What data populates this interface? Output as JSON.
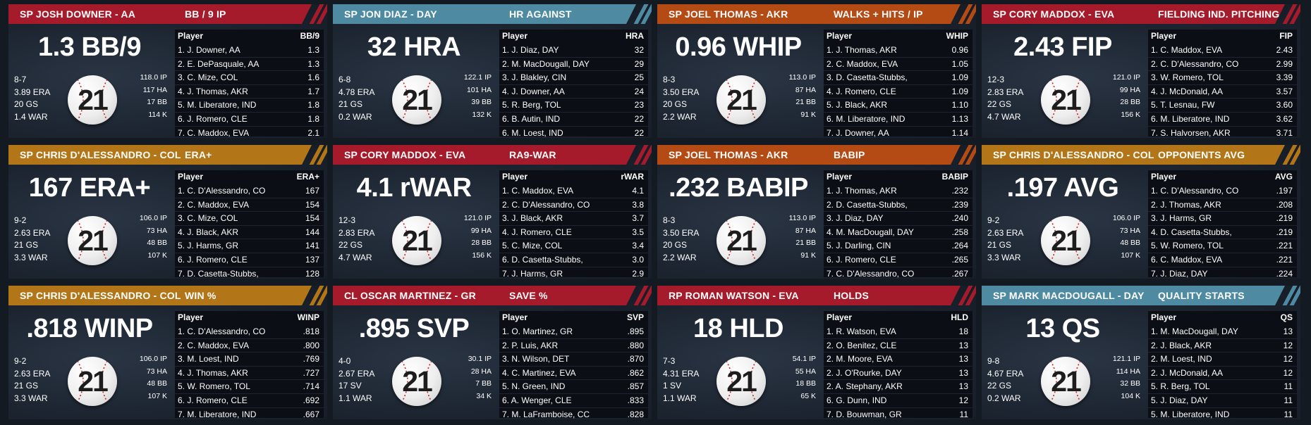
{
  "colors": {
    "red": "#a61b2b",
    "blue": "#4f8aa3",
    "orange": "#b44a14",
    "gold": "#b27618"
  },
  "cards": [
    {
      "color": "#a61b2b",
      "player": "SP JOSH DOWNER - AA",
      "category": "BB / 9 IP",
      "big": "1.3 BB/9",
      "left_stats": [
        "8-7",
        "3.89 ERA",
        "20 GS",
        "1.4 WAR"
      ],
      "right_stats": [
        "118.0 IP",
        "117 HA",
        "17 BB",
        "114 K"
      ],
      "col_player": "Player",
      "col_stat": "BB/9",
      "rows": [
        {
          "name": "1. J. Downer, AA",
          "val": "1.3"
        },
        {
          "name": "2. E. DePasquale, AA",
          "val": "1.3"
        },
        {
          "name": "3. C. Mize, COL",
          "val": "1.6"
        },
        {
          "name": "4. J. Thomas, AKR",
          "val": "1.7"
        },
        {
          "name": "5. M. Liberatore, IND",
          "val": "1.8"
        },
        {
          "name": "6. J. Romero, CLE",
          "val": "1.8"
        },
        {
          "name": "7. C. Maddox, EVA",
          "val": "2.1"
        }
      ]
    },
    {
      "color": "#4f8aa3",
      "player": "SP JON DIAZ - DAY",
      "category": "HR AGAINST",
      "big": "32 HRA",
      "left_stats": [
        "6-8",
        "4.78 ERA",
        "21 GS",
        "0.2 WAR"
      ],
      "right_stats": [
        "122.1 IP",
        "101 HA",
        "39 BB",
        "132 K"
      ],
      "col_player": "Player",
      "col_stat": "HRA",
      "rows": [
        {
          "name": "1. J. Diaz, DAY",
          "val": "32"
        },
        {
          "name": "2. M. MacDougall, DAY",
          "val": "29"
        },
        {
          "name": "3. J. Blakley, CIN",
          "val": "25"
        },
        {
          "name": "4. J. Downer, AA",
          "val": "24"
        },
        {
          "name": "5. R. Berg, TOL",
          "val": "23"
        },
        {
          "name": "6. B. Autin, IND",
          "val": "22"
        },
        {
          "name": "6. M. Loest, IND",
          "val": "22"
        }
      ]
    },
    {
      "color": "#b44a14",
      "player": "SP JOEL THOMAS - AKR",
      "category": "WALKS + HITS / IP",
      "big": "0.96 WHIP",
      "left_stats": [
        "8-3",
        "3.50 ERA",
        "20 GS",
        "2.2 WAR"
      ],
      "right_stats": [
        "113.0 IP",
        "87 HA",
        "21 BB",
        "91 K"
      ],
      "col_player": "Player",
      "col_stat": "WHIP",
      "rows": [
        {
          "name": "1. J. Thomas, AKR",
          "val": "0.96"
        },
        {
          "name": "2. C. Maddox, EVA",
          "val": "1.05"
        },
        {
          "name": "3. D. Casetta-Stubbs,",
          "val": "1.09"
        },
        {
          "name": "4. J. Romero, CLE",
          "val": "1.09"
        },
        {
          "name": "5. J. Black, AKR",
          "val": "1.10"
        },
        {
          "name": "6. M. Liberatore, IND",
          "val": "1.13"
        },
        {
          "name": "7. J. Downer, AA",
          "val": "1.14"
        }
      ]
    },
    {
      "color": "#a61b2b",
      "player": "SP CORY MADDOX - EVA",
      "category": "FIELDING IND. PITCHING",
      "big": "2.43 FIP",
      "left_stats": [
        "12-3",
        "2.83 ERA",
        "22 GS",
        "4.7 WAR"
      ],
      "right_stats": [
        "121.0 IP",
        "99 HA",
        "28 BB",
        "156 K"
      ],
      "col_player": "Player",
      "col_stat": "FIP",
      "rows": [
        {
          "name": "1. C. Maddox, EVA",
          "val": "2.43"
        },
        {
          "name": "2. C. D'Alessandro, CO",
          "val": "2.99"
        },
        {
          "name": "3. W. Romero, TOL",
          "val": "3.39"
        },
        {
          "name": "4. J. McDonald, AA",
          "val": "3.57"
        },
        {
          "name": "5. T. Lesnau, FW",
          "val": "3.60"
        },
        {
          "name": "6. M. Liberatore, IND",
          "val": "3.62"
        },
        {
          "name": "7. S. Halvorsen, AKR",
          "val": "3.71"
        }
      ]
    },
    {
      "color": "#b27618",
      "player": "SP CHRIS D'ALESSANDRO - COL",
      "category": "ERA+",
      "big": "167 ERA+",
      "left_stats": [
        "9-2",
        "2.63 ERA",
        "21 GS",
        "3.3 WAR"
      ],
      "right_stats": [
        "106.0 IP",
        "73 HA",
        "48 BB",
        "107 K"
      ],
      "col_player": "Player",
      "col_stat": "ERA+",
      "rows": [
        {
          "name": "1. C. D'Alessandro, CO",
          "val": "167"
        },
        {
          "name": "2. C. Maddox, EVA",
          "val": "154"
        },
        {
          "name": "3. C. Mize, COL",
          "val": "154"
        },
        {
          "name": "4. J. Black, AKR",
          "val": "144"
        },
        {
          "name": "5. J. Harms, GR",
          "val": "141"
        },
        {
          "name": "6. J. Romero, CLE",
          "val": "137"
        },
        {
          "name": "7. D. Casetta-Stubbs,",
          "val": "128"
        }
      ]
    },
    {
      "color": "#a61b2b",
      "player": "SP CORY MADDOX - EVA",
      "category": "RA9-WAR",
      "big": "4.1 rWAR",
      "left_stats": [
        "12-3",
        "2.83 ERA",
        "22 GS",
        "4.7 WAR"
      ],
      "right_stats": [
        "121.0 IP",
        "99 HA",
        "28 BB",
        "156 K"
      ],
      "col_player": "Player",
      "col_stat": "rWAR",
      "rows": [
        {
          "name": "1. C. Maddox, EVA",
          "val": "4.1"
        },
        {
          "name": "2. C. D'Alessandro, CO",
          "val": "3.8"
        },
        {
          "name": "3. J. Black, AKR",
          "val": "3.7"
        },
        {
          "name": "4. J. Romero, CLE",
          "val": "3.5"
        },
        {
          "name": "5. C. Mize, COL",
          "val": "3.4"
        },
        {
          "name": "6. D. Casetta-Stubbs,",
          "val": "3.0"
        },
        {
          "name": "7. J. Harms, GR",
          "val": "2.9"
        }
      ]
    },
    {
      "color": "#b44a14",
      "player": "SP JOEL THOMAS - AKR",
      "category": "BABIP",
      "big": ".232 BABIP",
      "left_stats": [
        "8-3",
        "3.50 ERA",
        "20 GS",
        "2.2 WAR"
      ],
      "right_stats": [
        "113.0 IP",
        "87 HA",
        "21 BB",
        "91 K"
      ],
      "col_player": "Player",
      "col_stat": "BABIP",
      "rows": [
        {
          "name": "1. J. Thomas, AKR",
          "val": ".232"
        },
        {
          "name": "2. D. Casetta-Stubbs,",
          "val": ".239"
        },
        {
          "name": "3. J. Diaz, DAY",
          "val": ".240"
        },
        {
          "name": "4. M. MacDougall, DAY",
          "val": ".258"
        },
        {
          "name": "5. J. Darling, CIN",
          "val": ".264"
        },
        {
          "name": "6. J. Romero, CLE",
          "val": ".265"
        },
        {
          "name": "7. C. D'Alessandro, CO",
          "val": ".267"
        }
      ]
    },
    {
      "color": "#b27618",
      "player": "SP CHRIS D'ALESSANDRO - COL",
      "category": "OPPONENTS AVG",
      "big": ".197 AVG",
      "left_stats": [
        "9-2",
        "2.63 ERA",
        "21 GS",
        "3.3 WAR"
      ],
      "right_stats": [
        "106.0 IP",
        "73 HA",
        "48 BB",
        "107 K"
      ],
      "col_player": "Player",
      "col_stat": "AVG",
      "rows": [
        {
          "name": "1. C. D'Alessandro, CO",
          "val": ".197"
        },
        {
          "name": "2. J. Thomas, AKR",
          "val": ".208"
        },
        {
          "name": "3. J. Harms, GR",
          "val": ".219"
        },
        {
          "name": "4. D. Casetta-Stubbs,",
          "val": ".219"
        },
        {
          "name": "5. W. Romero, TOL",
          "val": ".221"
        },
        {
          "name": "6. C. Maddox, EVA",
          "val": ".221"
        },
        {
          "name": "7. J. Diaz, DAY",
          "val": ".224"
        }
      ]
    },
    {
      "color": "#b27618",
      "player": "SP CHRIS D'ALESSANDRO - COL",
      "category": "WIN %",
      "big": ".818 WINP",
      "left_stats": [
        "9-2",
        "2.63 ERA",
        "21 GS",
        "3.3 WAR"
      ],
      "right_stats": [
        "106.0 IP",
        "73 HA",
        "48 BB",
        "107 K"
      ],
      "col_player": "Player",
      "col_stat": "WINP",
      "rows": [
        {
          "name": "1. C. D'Alessandro, CO",
          "val": ".818"
        },
        {
          "name": "2. C. Maddox, EVA",
          "val": ".800"
        },
        {
          "name": "3. M. Loest, IND",
          "val": ".769"
        },
        {
          "name": "4. J. Thomas, AKR",
          "val": ".727"
        },
        {
          "name": "5. W. Romero, TOL",
          "val": ".714"
        },
        {
          "name": "6. J. Romero, CLE",
          "val": ".692"
        },
        {
          "name": "7. M. Liberatore, IND",
          "val": ".667"
        }
      ]
    },
    {
      "color": "#a61b2b",
      "player": "CL OSCAR MARTINEZ - GR",
      "category": "SAVE %",
      "big": ".895 SVP",
      "left_stats": [
        "4-0",
        "2.67 ERA",
        "17 SV",
        "1.1 WAR"
      ],
      "right_stats": [
        "30.1 IP",
        "28 HA",
        "7 BB",
        "34 K"
      ],
      "col_player": "Player",
      "col_stat": "SVP",
      "rows": [
        {
          "name": "1. O. Martinez, GR",
          "val": ".895"
        },
        {
          "name": "2. P. Luis, AKR",
          "val": ".880"
        },
        {
          "name": "3. N. Wilson, DET",
          "val": ".870"
        },
        {
          "name": "4. C. Martinez, EVA",
          "val": ".862"
        },
        {
          "name": "5. N. Green, IND",
          "val": ".857"
        },
        {
          "name": "6. A. Wenger, CLE",
          "val": ".833"
        },
        {
          "name": "7. M. LaFramboise, CC",
          "val": ".828"
        }
      ]
    },
    {
      "color": "#a61b2b",
      "player": "RP ROMAN WATSON - EVA",
      "category": "HOLDS",
      "big": "18 HLD",
      "left_stats": [
        "7-3",
        "4.31 ERA",
        "1 SV",
        "1.1 WAR"
      ],
      "right_stats": [
        "54.1 IP",
        "55 HA",
        "18 BB",
        "65 K"
      ],
      "col_player": "Player",
      "col_stat": "HLD",
      "rows": [
        {
          "name": "1. R. Watson, EVA",
          "val": "18"
        },
        {
          "name": "2. O. Benitez, CLE",
          "val": "13"
        },
        {
          "name": "2. M. Moore, EVA",
          "val": "13"
        },
        {
          "name": "2. J. O'Rourke, DAY",
          "val": "13"
        },
        {
          "name": "2. A. Stephany, AKR",
          "val": "13"
        },
        {
          "name": "6. G. Dunn, IND",
          "val": "12"
        },
        {
          "name": "7. D. Bouwman, GR",
          "val": "11"
        }
      ]
    },
    {
      "color": "#4f8aa3",
      "player": "SP MARK MACDOUGALL - DAY",
      "category": "QUALITY STARTS",
      "big": "13 QS",
      "left_stats": [
        "9-8",
        "4.67 ERA",
        "22 GS",
        "0.2 WAR"
      ],
      "right_stats": [
        "121.1 IP",
        "114 HA",
        "32 BB",
        "104 K"
      ],
      "col_player": "Player",
      "col_stat": "QS",
      "rows": [
        {
          "name": "1. M. MacDougall, DAY",
          "val": "13"
        },
        {
          "name": "2. J. Black, AKR",
          "val": "12"
        },
        {
          "name": "2. M. Loest, IND",
          "val": "12"
        },
        {
          "name": "2. J. McDonald, AA",
          "val": "12"
        },
        {
          "name": "5. R. Berg, TOL",
          "val": "11"
        },
        {
          "name": "5. J. Diaz, DAY",
          "val": "11"
        },
        {
          "name": "5. M. Liberatore, IND",
          "val": "11"
        }
      ]
    }
  ],
  "ball_number": "21"
}
